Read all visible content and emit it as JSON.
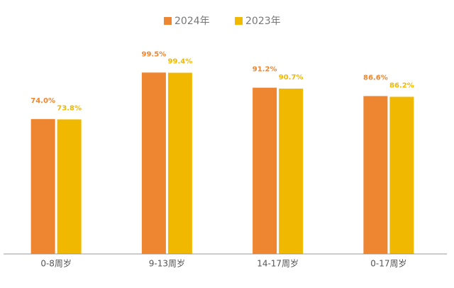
{
  "chart_data": {
    "type": "bar",
    "categories": [
      "0-8周岁",
      "9-13周岁",
      "14-17周岁",
      "0-17周岁"
    ],
    "series": [
      {
        "name": "2024年",
        "color": "#ed8531",
        "values": [
          74.0,
          99.5,
          91.2,
          86.6
        ],
        "value_labels": [
          "74.0%",
          "99.5%",
          "91.2%",
          "86.6%"
        ]
      },
      {
        "name": "2023年",
        "color": "#f1b800",
        "values": [
          73.8,
          99.4,
          90.7,
          86.2
        ],
        "value_labels": [
          "73.8%",
          "99.4%",
          "90.7%",
          "86.2%"
        ]
      }
    ],
    "ylim": [
      0,
      100
    ],
    "legend": "top"
  }
}
